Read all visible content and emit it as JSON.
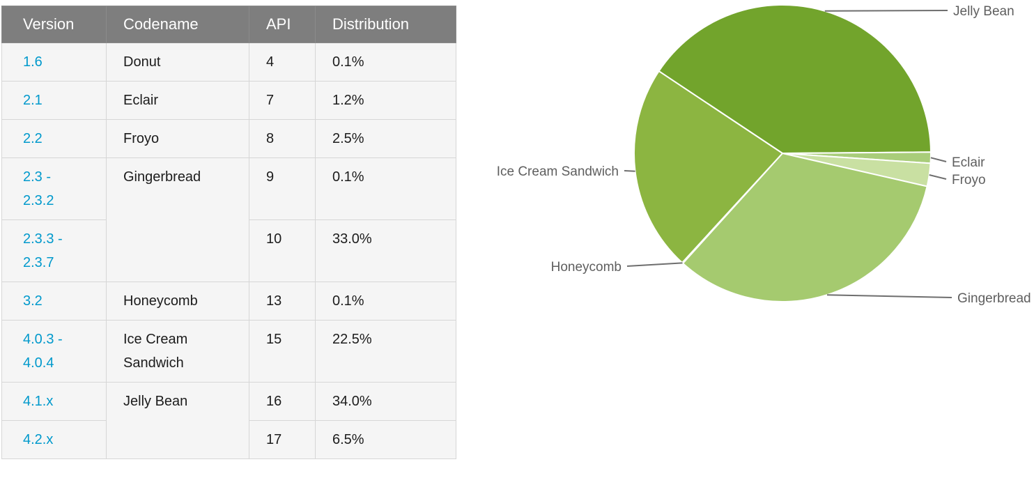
{
  "table": {
    "headers": [
      "Version",
      "Codename",
      "API",
      "Distribution"
    ],
    "rows": [
      {
        "version_lines": [
          "1.6"
        ],
        "codename": "Donut",
        "api": "4",
        "distribution": "0.1%"
      },
      {
        "version_lines": [
          "2.1"
        ],
        "codename": "Eclair",
        "api": "7",
        "distribution": "1.2%"
      },
      {
        "version_lines": [
          "2.2"
        ],
        "codename": "Froyo",
        "api": "8",
        "distribution": "2.5%"
      },
      {
        "version_lines": [
          "2.3 -",
          "2.3.2"
        ],
        "codename": "Gingerbread",
        "codename_rowspan": 2,
        "api": "9",
        "distribution": "0.1%"
      },
      {
        "version_lines": [
          "2.3.3 -",
          "2.3.7"
        ],
        "codename": null,
        "api": "10",
        "distribution": "33.0%"
      },
      {
        "version_lines": [
          "3.2"
        ],
        "codename": "Honeycomb",
        "api": "13",
        "distribution": "0.1%"
      },
      {
        "version_lines": [
          "4.0.3 -",
          "4.0.4"
        ],
        "codename": "Ice Cream Sandwich",
        "api": "15",
        "distribution": "22.5%"
      },
      {
        "version_lines": [
          "4.1.x"
        ],
        "codename": "Jelly Bean",
        "codename_rowspan": 2,
        "api": "16",
        "distribution": "34.0%"
      },
      {
        "version_lines": [
          "4.2.x"
        ],
        "codename": null,
        "api": "17",
        "distribution": "6.5%"
      }
    ]
  },
  "chart_data": {
    "type": "pie",
    "title": "",
    "unit": "percent",
    "direction": "clockwise",
    "start_angle_deg": -56.4,
    "legend_position": "leader-line-labels",
    "slices": [
      {
        "label": "Jelly Bean",
        "value": 40.5,
        "color": "#72a42c"
      },
      {
        "label": "Eclair",
        "value": 1.2,
        "color": "#a9cd7a"
      },
      {
        "label": "Froyo",
        "value": 2.5,
        "color": "#c9e0a2"
      },
      {
        "label": "Gingerbread",
        "value": 33.1,
        "color": "#a5ca6f"
      },
      {
        "label": "Honeycomb",
        "value": 0.1,
        "color": "#b5d68a"
      },
      {
        "label": "Ice Cream Sandwich",
        "value": 22.5,
        "color": "#8cb541"
      }
    ]
  },
  "colors": {
    "header_background": "#7e7e7e",
    "header_text": "#ffffff",
    "row_background": "#f5f5f5",
    "version_link": "#0099cc",
    "body_text": "#1c1c1c",
    "leader_line": "#6e6e6e",
    "chart_label_text": "#5e5e5e"
  }
}
